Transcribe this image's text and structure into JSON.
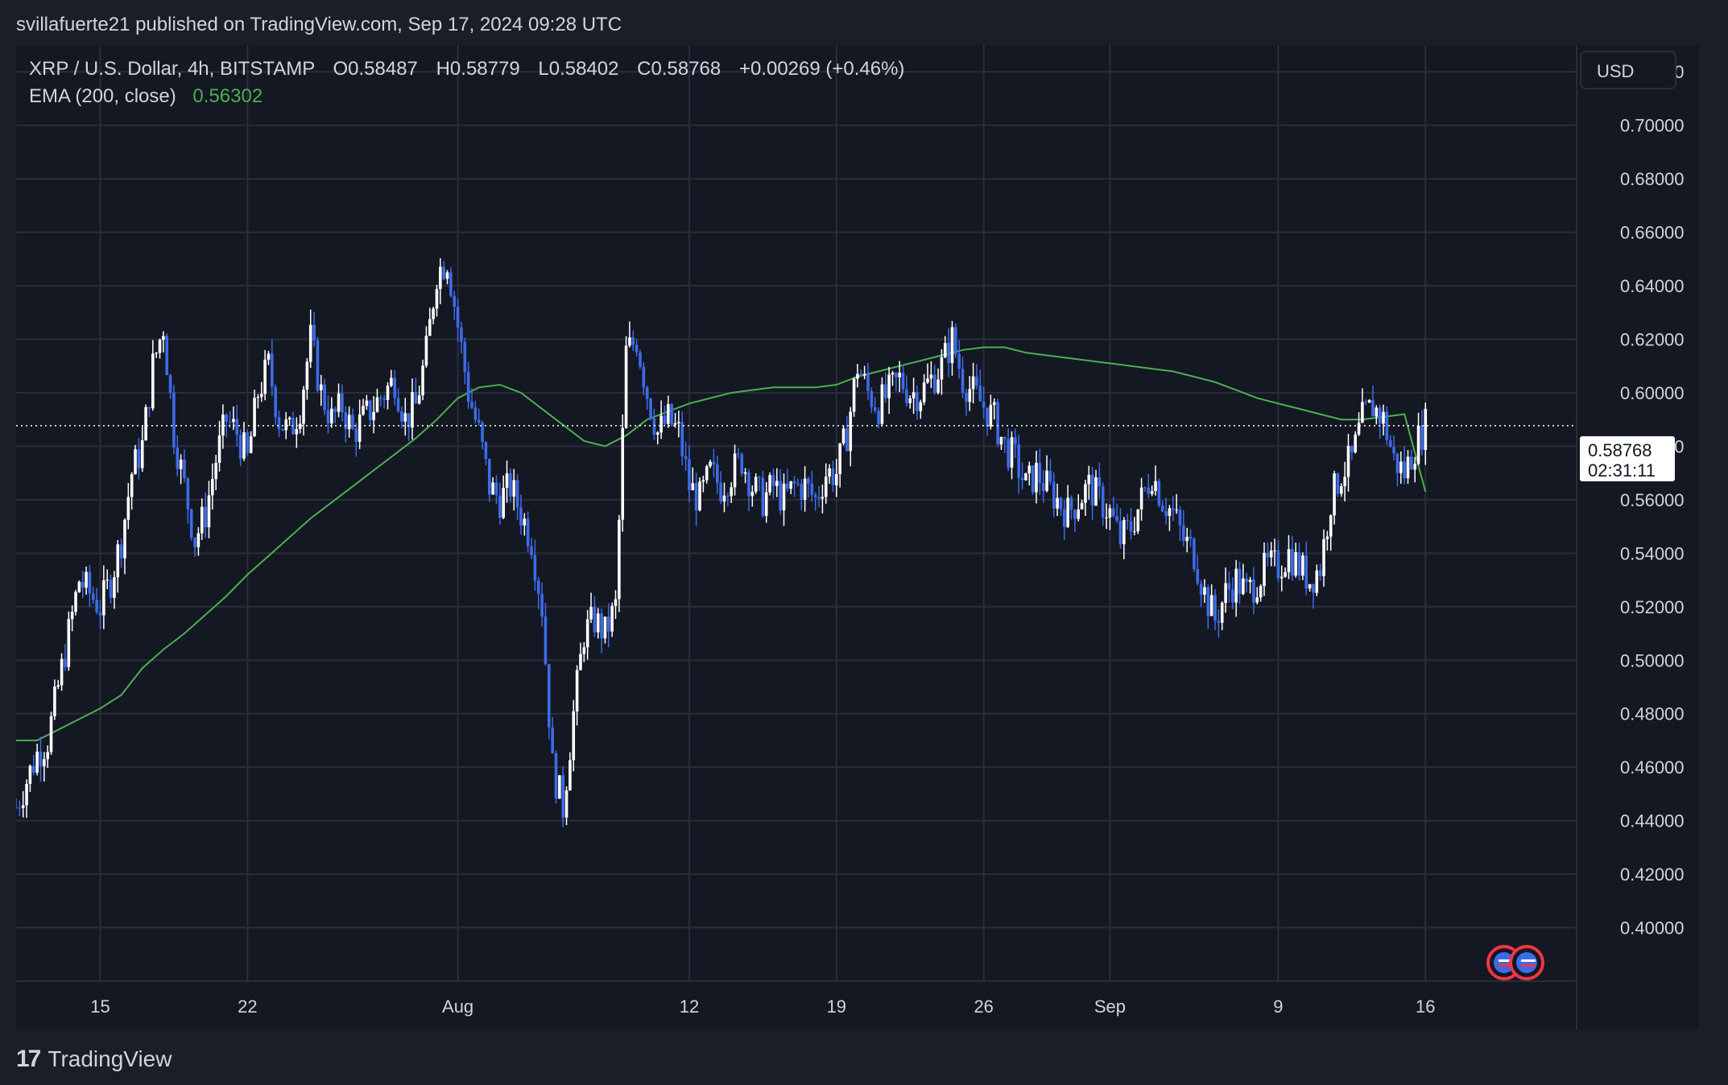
{
  "header": {
    "published": "svillafuerte21 published on TradingView.com, Sep 17, 2024 09:28 UTC"
  },
  "legend": {
    "symbol": "XRP / U.S. Dollar, 4h, BITSTAMP",
    "o_label": "O",
    "o_value": "0.58487",
    "h_label": "H",
    "h_value": "0.58779",
    "l_label": "L",
    "l_value": "0.58402",
    "c_label": "C",
    "c_value": "0.58768",
    "change": "+0.00269 (+0.46%)",
    "ema_label": "EMA (200, close)",
    "ema_value": "0.56302"
  },
  "price_axis": {
    "currency": "USD",
    "last_price": "0.58768",
    "countdown": "02:31:11"
  },
  "footer": {
    "brand": "TradingView",
    "logo": "17"
  },
  "colors": {
    "background": "#141823",
    "grid": "#2a2e39",
    "candle_up": "#ffffff",
    "candle_down": "#3d6be8",
    "ema": "#4caf50",
    "text": "#d1d4dc"
  },
  "icons": [
    "us-flag-event-icon",
    "us-flag-event-icon"
  ],
  "chart_data": {
    "type": "candlestick",
    "title": "XRP / U.S. Dollar, 4h, BITSTAMP",
    "ylim": [
      0.38,
      0.73
    ],
    "y_ticks": [
      "0.72000",
      "0.70000",
      "0.68000",
      "0.66000",
      "0.64000",
      "0.62000",
      "0.60000",
      "0.58000",
      "0.56000",
      "0.54000",
      "0.52000",
      "0.50000",
      "0.48000",
      "0.46000",
      "0.44000",
      "0.42000",
      "0.40000"
    ],
    "y_tick_values": [
      0.72,
      0.7,
      0.68,
      0.66,
      0.64,
      0.62,
      0.6,
      0.58,
      0.56,
      0.54,
      0.52,
      0.5,
      0.48,
      0.46,
      0.44,
      0.42,
      0.4
    ],
    "x_ticks": [
      {
        "label": "15",
        "day": 4
      },
      {
        "label": "22",
        "day": 11
      },
      {
        "label": "Aug",
        "day": 21
      },
      {
        "label": "12",
        "day": 32
      },
      {
        "label": "19",
        "day": 39
      },
      {
        "label": "26",
        "day": 46
      },
      {
        "label": "Sep",
        "day": 52
      },
      {
        "label": "9",
        "day": 60
      },
      {
        "label": "16",
        "day": 67
      }
    ],
    "x_range_days": [
      0,
      73
    ],
    "close_path": [
      [
        0.0,
        0.445
      ],
      [
        0.5,
        0.455
      ],
      [
        1.0,
        0.465
      ],
      [
        1.5,
        0.47
      ],
      [
        2.0,
        0.49
      ],
      [
        2.5,
        0.51
      ],
      [
        3.0,
        0.53
      ],
      [
        3.5,
        0.525
      ],
      [
        4.0,
        0.52
      ],
      [
        4.5,
        0.53
      ],
      [
        5.0,
        0.545
      ],
      [
        5.5,
        0.57
      ],
      [
        6.0,
        0.58
      ],
      [
        6.5,
        0.61
      ],
      [
        7.0,
        0.625
      ],
      [
        7.5,
        0.585
      ],
      [
        8.0,
        0.565
      ],
      [
        8.5,
        0.545
      ],
      [
        9.0,
        0.555
      ],
      [
        9.5,
        0.575
      ],
      [
        10.0,
        0.59
      ],
      [
        10.5,
        0.585
      ],
      [
        11.0,
        0.575
      ],
      [
        11.5,
        0.6
      ],
      [
        12.0,
        0.61
      ],
      [
        12.5,
        0.59
      ],
      [
        13.0,
        0.585
      ],
      [
        13.5,
        0.595
      ],
      [
        14.0,
        0.62
      ],
      [
        14.5,
        0.6
      ],
      [
        15.0,
        0.59
      ],
      [
        15.5,
        0.595
      ],
      [
        16.0,
        0.585
      ],
      [
        16.5,
        0.59
      ],
      [
        17.0,
        0.595
      ],
      [
        17.5,
        0.6
      ],
      [
        18.0,
        0.605
      ],
      [
        18.5,
        0.59
      ],
      [
        19.0,
        0.595
      ],
      [
        19.5,
        0.615
      ],
      [
        20.0,
        0.645
      ],
      [
        20.5,
        0.65
      ],
      [
        21.0,
        0.625
      ],
      [
        21.5,
        0.6
      ],
      [
        22.0,
        0.585
      ],
      [
        22.5,
        0.565
      ],
      [
        23.0,
        0.56
      ],
      [
        23.5,
        0.565
      ],
      [
        24.0,
        0.555
      ],
      [
        24.5,
        0.545
      ],
      [
        25.0,
        0.52
      ],
      [
        25.5,
        0.46
      ],
      [
        26.0,
        0.445
      ],
      [
        26.5,
        0.48
      ],
      [
        27.0,
        0.51
      ],
      [
        27.5,
        0.515
      ],
      [
        28.0,
        0.51
      ],
      [
        28.5,
        0.52
      ],
      [
        29.0,
        0.615
      ],
      [
        29.5,
        0.62
      ],
      [
        30.0,
        0.6
      ],
      [
        30.5,
        0.585
      ],
      [
        31.0,
        0.59
      ],
      [
        31.5,
        0.585
      ],
      [
        32.0,
        0.565
      ],
      [
        32.5,
        0.56
      ],
      [
        33.0,
        0.57
      ],
      [
        33.5,
        0.565
      ],
      [
        34.0,
        0.57
      ],
      [
        34.5,
        0.575
      ],
      [
        35.0,
        0.565
      ],
      [
        35.5,
        0.56
      ],
      [
        36.0,
        0.565
      ],
      [
        36.5,
        0.56
      ],
      [
        37.0,
        0.565
      ],
      [
        37.5,
        0.565
      ],
      [
        38.0,
        0.56
      ],
      [
        38.5,
        0.57
      ],
      [
        39.0,
        0.57
      ],
      [
        39.5,
        0.585
      ],
      [
        40.0,
        0.61
      ],
      [
        40.5,
        0.6
      ],
      [
        41.0,
        0.595
      ],
      [
        41.5,
        0.6
      ],
      [
        42.0,
        0.605
      ],
      [
        42.5,
        0.6
      ],
      [
        43.0,
        0.6
      ],
      [
        43.5,
        0.605
      ],
      [
        44.0,
        0.61
      ],
      [
        44.5,
        0.62
      ],
      [
        45.0,
        0.605
      ],
      [
        45.5,
        0.6
      ],
      [
        46.0,
        0.595
      ],
      [
        46.5,
        0.59
      ],
      [
        47.0,
        0.58
      ],
      [
        47.5,
        0.575
      ],
      [
        48.0,
        0.565
      ],
      [
        48.5,
        0.57
      ],
      [
        49.0,
        0.565
      ],
      [
        49.5,
        0.56
      ],
      [
        50.0,
        0.555
      ],
      [
        50.5,
        0.56
      ],
      [
        51.0,
        0.565
      ],
      [
        51.5,
        0.56
      ],
      [
        52.0,
        0.555
      ],
      [
        52.5,
        0.545
      ],
      [
        53.0,
        0.55
      ],
      [
        53.5,
        0.56
      ],
      [
        54.0,
        0.57
      ],
      [
        54.5,
        0.56
      ],
      [
        55.0,
        0.555
      ],
      [
        55.5,
        0.545
      ],
      [
        56.0,
        0.54
      ],
      [
        56.5,
        0.525
      ],
      [
        57.0,
        0.515
      ],
      [
        57.5,
        0.525
      ],
      [
        58.0,
        0.53
      ],
      [
        58.5,
        0.525
      ],
      [
        59.0,
        0.53
      ],
      [
        59.5,
        0.535
      ],
      [
        60.0,
        0.535
      ],
      [
        60.5,
        0.54
      ],
      [
        61.0,
        0.535
      ],
      [
        61.5,
        0.53
      ],
      [
        62.0,
        0.535
      ],
      [
        62.5,
        0.56
      ],
      [
        63.0,
        0.57
      ],
      [
        63.5,
        0.575
      ],
      [
        64.0,
        0.59
      ],
      [
        64.5,
        0.595
      ],
      [
        65.0,
        0.59
      ],
      [
        65.5,
        0.575
      ],
      [
        66.0,
        0.57
      ],
      [
        66.5,
        0.58
      ],
      [
        67.0,
        0.588
      ]
    ],
    "ema_path": [
      [
        0.0,
        0.47
      ],
      [
        1.0,
        0.47
      ],
      [
        2.0,
        0.474
      ],
      [
        3.0,
        0.478
      ],
      [
        4.0,
        0.482
      ],
      [
        5.0,
        0.487
      ],
      [
        6.0,
        0.497
      ],
      [
        7.0,
        0.504
      ],
      [
        8.0,
        0.51
      ],
      [
        9.0,
        0.517
      ],
      [
        10.0,
        0.524
      ],
      [
        11.0,
        0.532
      ],
      [
        12.0,
        0.539
      ],
      [
        13.0,
        0.546
      ],
      [
        14.0,
        0.553
      ],
      [
        15.0,
        0.559
      ],
      [
        16.0,
        0.565
      ],
      [
        17.0,
        0.571
      ],
      [
        18.0,
        0.577
      ],
      [
        19.0,
        0.583
      ],
      [
        20.0,
        0.59
      ],
      [
        21.0,
        0.598
      ],
      [
        22.0,
        0.602
      ],
      [
        23.0,
        0.603
      ],
      [
        24.0,
        0.6
      ],
      [
        25.0,
        0.594
      ],
      [
        26.0,
        0.588
      ],
      [
        27.0,
        0.582
      ],
      [
        28.0,
        0.58
      ],
      [
        29.0,
        0.584
      ],
      [
        30.0,
        0.59
      ],
      [
        31.0,
        0.593
      ],
      [
        32.0,
        0.596
      ],
      [
        33.0,
        0.598
      ],
      [
        34.0,
        0.6
      ],
      [
        35.0,
        0.601
      ],
      [
        36.0,
        0.602
      ],
      [
        37.0,
        0.602
      ],
      [
        38.0,
        0.602
      ],
      [
        39.0,
        0.603
      ],
      [
        40.0,
        0.606
      ],
      [
        41.0,
        0.608
      ],
      [
        42.0,
        0.61
      ],
      [
        43.0,
        0.612
      ],
      [
        44.0,
        0.614
      ],
      [
        45.0,
        0.616
      ],
      [
        46.0,
        0.617
      ],
      [
        47.0,
        0.617
      ],
      [
        48.0,
        0.615
      ],
      [
        49.0,
        0.614
      ],
      [
        50.0,
        0.613
      ],
      [
        51.0,
        0.612
      ],
      [
        52.0,
        0.611
      ],
      [
        53.0,
        0.61
      ],
      [
        54.0,
        0.609
      ],
      [
        55.0,
        0.608
      ],
      [
        56.0,
        0.606
      ],
      [
        57.0,
        0.604
      ],
      [
        58.0,
        0.601
      ],
      [
        59.0,
        0.598
      ],
      [
        60.0,
        0.596
      ],
      [
        61.0,
        0.594
      ],
      [
        62.0,
        0.592
      ],
      [
        63.0,
        0.59
      ],
      [
        64.0,
        0.59
      ],
      [
        65.0,
        0.591
      ],
      [
        66.0,
        0.592
      ],
      [
        67.0,
        0.563
      ]
    ]
  }
}
